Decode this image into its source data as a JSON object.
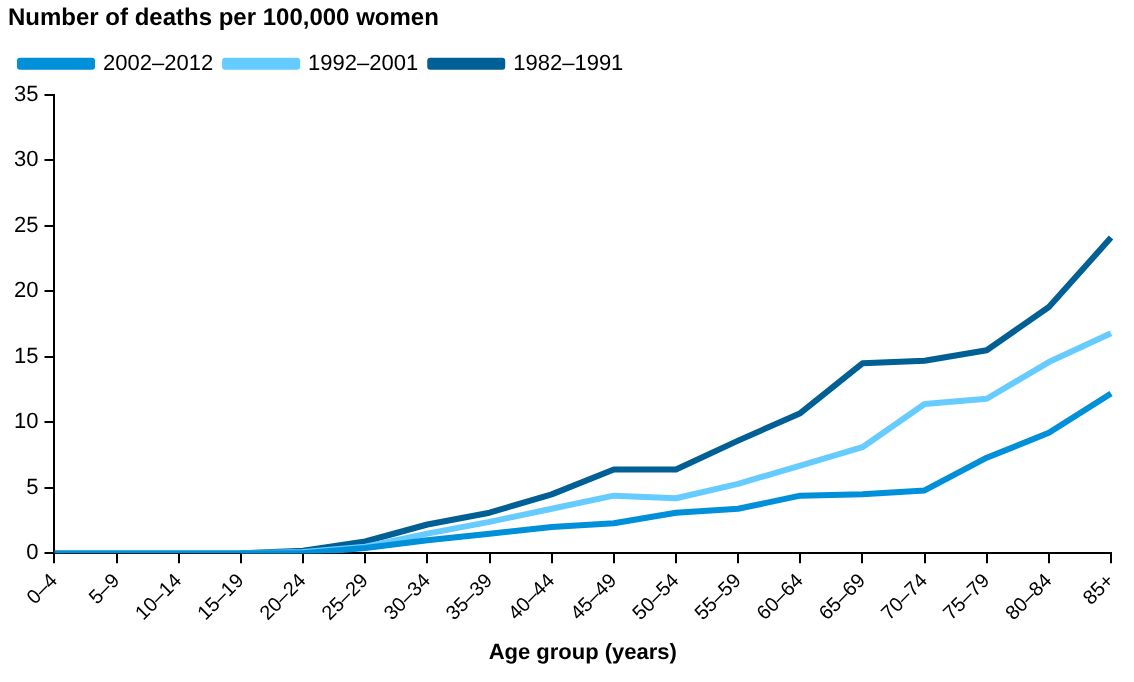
{
  "chart_data": {
    "type": "line",
    "title": "Number of deaths per 100,000 women",
    "xlabel": "Age group (years)",
    "categories": [
      "0–4",
      "5–9",
      "10–14",
      "15–19",
      "20–24",
      "25–29",
      "30–34",
      "35–39",
      "40–44",
      "45–49",
      "50–54",
      "55–59",
      "60–64",
      "65–69",
      "70–74",
      "75–79",
      "80–84",
      "85+"
    ],
    "series": [
      {
        "name": "1982–1991",
        "color": "#005f94",
        "values": [
          null,
          null,
          null,
          0,
          0.2,
          0.9,
          2.2,
          3.1,
          4.5,
          6.4,
          6.4,
          8.6,
          10.7,
          14.5,
          14.7,
          15.5,
          18.8,
          24.1
        ]
      },
      {
        "name": "1992–2001",
        "color": "#66ccff",
        "values": [
          null,
          null,
          null,
          0,
          0.1,
          0.5,
          1.5,
          2.4,
          3.4,
          4.4,
          4.2,
          5.3,
          6.7,
          8.1,
          11.4,
          11.8,
          14.6,
          16.8
        ]
      },
      {
        "name": "2002–2012",
        "color": "#0090d9",
        "values": [
          0,
          0,
          0,
          0,
          0,
          0.4,
          1.0,
          1.5,
          2.0,
          2.3,
          3.1,
          3.4,
          4.4,
          4.5,
          4.8,
          7.3,
          9.2,
          12.2
        ]
      }
    ],
    "ylim": [
      0,
      35
    ],
    "yticks": [
      0,
      5,
      10,
      15,
      20,
      25,
      30,
      35
    ],
    "grid": false,
    "legend": "top left",
    "marker": "none",
    "line_style": "solid"
  }
}
